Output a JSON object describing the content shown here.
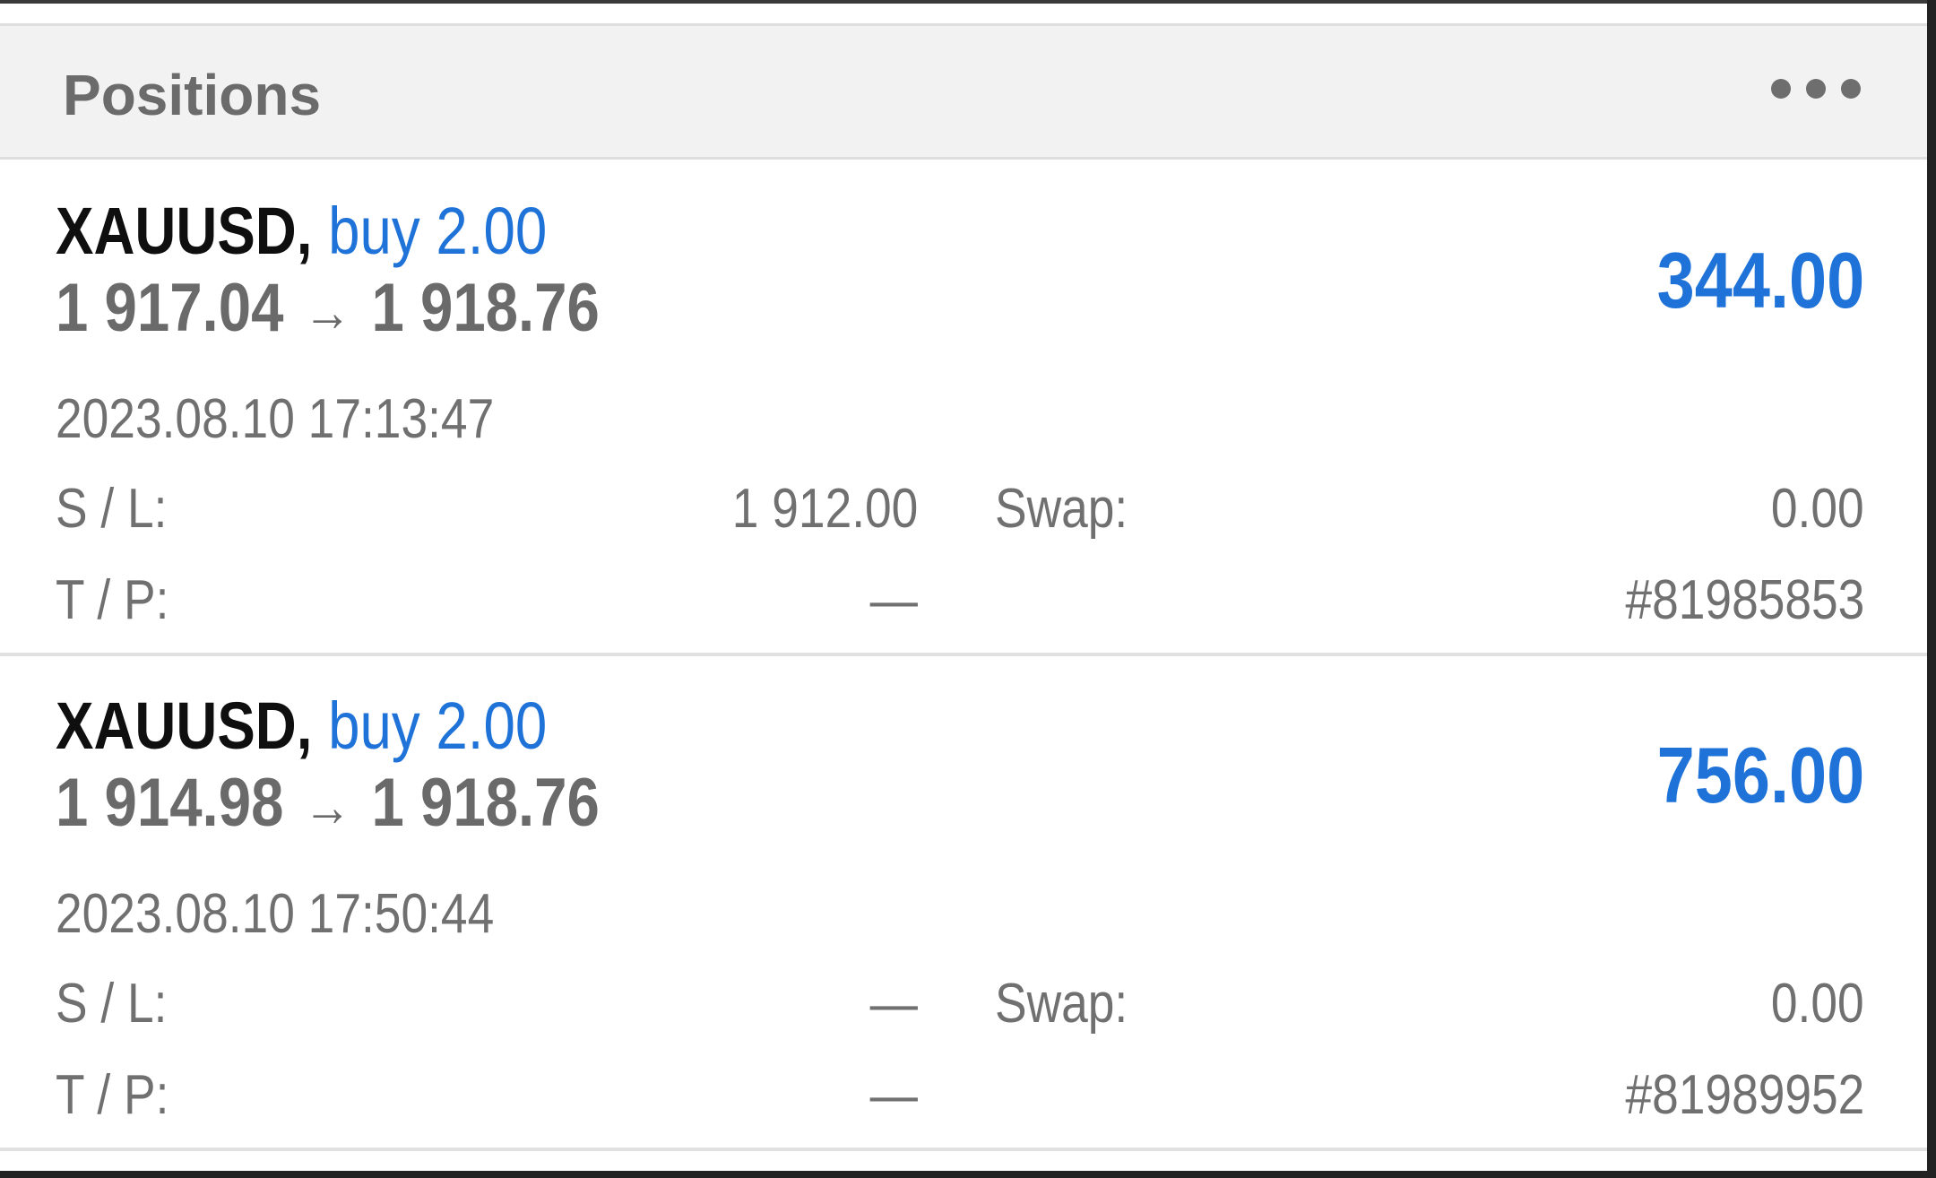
{
  "header": {
    "title": "Positions",
    "more_icon": "more-dots-icon"
  },
  "positions": [
    {
      "symbol": "XAUUSD",
      "separator": ",",
      "side": "buy 2.00",
      "open_price": "1 917.04",
      "arrow": "→",
      "current_price": "1 918.76",
      "profit": "344.00",
      "time": "2023.08.10 17:13:47",
      "sl_label": "S / L:",
      "sl_value": "1 912.00",
      "tp_label": "T / P:",
      "tp_value": "—",
      "swap_label": "Swap:",
      "swap_value": "0.00",
      "ticket": "#81985853"
    },
    {
      "symbol": "XAUUSD",
      "separator": ",",
      "side": "buy 2.00",
      "open_price": "1 914.98",
      "arrow": "→",
      "current_price": "1 918.76",
      "profit": "756.00",
      "time": "2023.08.10 17:50:44",
      "sl_label": "S / L:",
      "sl_value": "—",
      "tp_label": "T / P:",
      "tp_value": "—",
      "swap_label": "Swap:",
      "swap_value": "0.00",
      "ticket": "#81989952"
    }
  ],
  "colors": {
    "accent": "#1f73d8",
    "text_dark": "#0f0f0f",
    "text_muted": "#707070",
    "header_bg": "#f2f2f2"
  }
}
